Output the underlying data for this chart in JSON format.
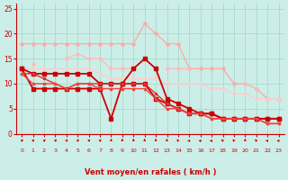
{
  "x": [
    0,
    1,
    2,
    3,
    4,
    5,
    6,
    7,
    8,
    9,
    10,
    11,
    12,
    13,
    14,
    15,
    16,
    17,
    18,
    19,
    20,
    21,
    22,
    23
  ],
  "series": [
    {
      "comment": "Light pink top line - nearly flat around 18, dips then rises to 22 at 11, then down",
      "y": [
        18,
        18,
        18,
        18,
        18,
        18,
        18,
        18,
        18,
        18,
        18,
        22,
        20,
        18,
        18,
        13,
        13,
        13,
        13,
        10,
        10,
        9,
        7,
        7
      ],
      "color": "#ffaaaa",
      "lw": 1.0,
      "marker": "D",
      "ms": 2.0
    },
    {
      "comment": "Medium pink line - starts ~14, rises to 16 at 5, peak 16, then down to ~13, then down to 7",
      "y": [
        null,
        14,
        null,
        null,
        15,
        16,
        15,
        15,
        13,
        13,
        13,
        null,
        null,
        13,
        13,
        13,
        null,
        null,
        null,
        null,
        10,
        9,
        null,
        7
      ],
      "color": "#ffbbbb",
      "lw": 1.0,
      "marker": "D",
      "ms": 2.0
    },
    {
      "comment": "Lighter pink diagonal line going from ~13 top left to ~7 bottom right",
      "y": [
        13,
        13,
        13,
        13,
        13,
        13,
        13,
        12,
        11,
        11,
        11,
        11,
        11,
        10,
        10,
        10,
        10,
        9,
        9,
        8,
        8,
        7,
        7,
        7
      ],
      "color": "#ffcccc",
      "lw": 1.0,
      "marker": "D",
      "ms": 1.5
    },
    {
      "comment": "Dark red line 1 - starts 13, drops to 9, then to 3 at 8, spikes 15 at 11, 13 at 12, then drops",
      "y": [
        13,
        9,
        9,
        9,
        9,
        9,
        9,
        9,
        3,
        10,
        13,
        15,
        13,
        7,
        6,
        5,
        4,
        4,
        3,
        3,
        3,
        3,
        3,
        3
      ],
      "color": "#cc0000",
      "lw": 1.3,
      "marker": "s",
      "ms": 2.5
    },
    {
      "comment": "Dark red line 2 - starts ~13, drops ~12, flat then up to 10, spikes at 11 to ~13, then drops",
      "y": [
        13,
        12,
        12,
        12,
        12,
        12,
        12,
        10,
        10,
        10,
        10,
        10,
        7,
        6,
        5,
        4,
        4,
        4,
        3,
        3,
        3,
        3,
        3,
        3
      ],
      "color": "#cc0000",
      "lw": 1.3,
      "marker": "s",
      "ms": 2.5
    },
    {
      "comment": "Medium red line - starts ~12, varies around 10-12, then drops steeply",
      "y": [
        12,
        12,
        11,
        10,
        9,
        10,
        10,
        10,
        10,
        10,
        10,
        10,
        8,
        6,
        5,
        4,
        4,
        3,
        3,
        3,
        3,
        3,
        2,
        2
      ],
      "color": "#dd3333",
      "lw": 1.0,
      "marker": "s",
      "ms": 2.0
    },
    {
      "comment": "Another red line slightly different path",
      "y": [
        12,
        10,
        10,
        10,
        9,
        10,
        10,
        9,
        9,
        9,
        9,
        9,
        7,
        5,
        5,
        4,
        4,
        3,
        3,
        3,
        3,
        3,
        2,
        2
      ],
      "color": "#ee4444",
      "lw": 1.0,
      "marker": "s",
      "ms": 2.0
    }
  ],
  "wind_dirs": [
    45,
    45,
    45,
    45,
    45,
    45,
    45,
    45,
    0,
    0,
    0,
    0,
    0,
    -10,
    -45,
    -90,
    -90,
    -90,
    -45,
    -45,
    0,
    -45,
    -90,
    -90
  ],
  "xlabel": "Vent moyen/en rafales ( km/h )",
  "xlim": [
    -0.5,
    23.5
  ],
  "ylim": [
    0,
    26
  ],
  "yticks": [
    0,
    5,
    10,
    15,
    20,
    25
  ],
  "xticks": [
    0,
    1,
    2,
    3,
    4,
    5,
    6,
    7,
    8,
    9,
    10,
    11,
    12,
    13,
    14,
    15,
    16,
    17,
    18,
    19,
    20,
    21,
    22,
    23
  ],
  "bg_color": "#cceee8",
  "grid_color": "#aaddcc",
  "line_color": "#cc0000",
  "text_color": "#cc0000"
}
